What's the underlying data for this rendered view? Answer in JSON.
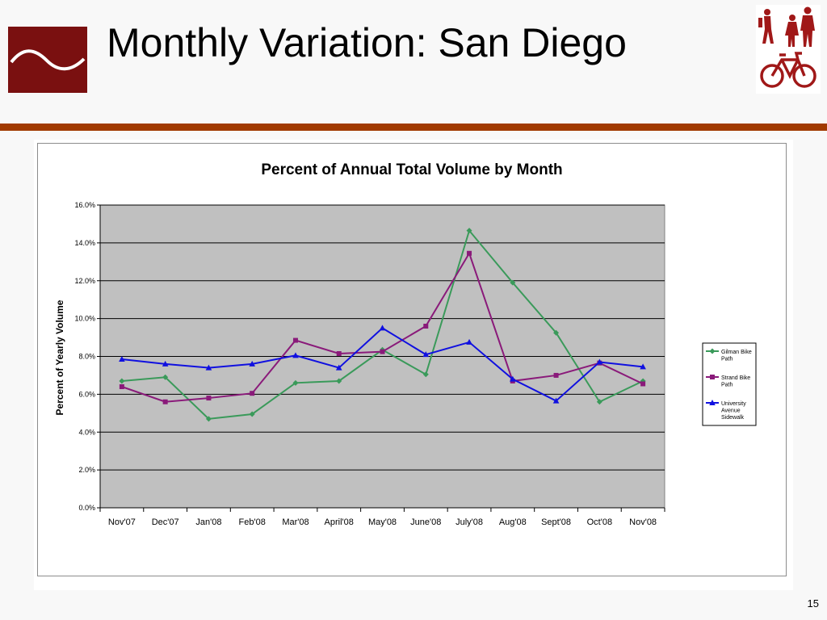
{
  "slide": {
    "title": "Monthly Variation: San Diego",
    "page_number": "15"
  },
  "colors": {
    "brand": "#7a1010",
    "header_bar": "#a13a00",
    "plot_area": "#c0c0c0",
    "gilman": "#3a9a5a",
    "strand": "#8a1a7a",
    "university": "#1010e0"
  },
  "icons": [
    "logo-wave-icon",
    "pedestrian-icon",
    "bicycle-icon"
  ],
  "chart_data": {
    "type": "line",
    "title": "Percent of Annual Total Volume by Month",
    "xlabel": "",
    "ylabel": "Percent of Yearly Volume",
    "ylim": [
      0,
      16
    ],
    "y_ticks": [
      "0.0%",
      "2.0%",
      "4.0%",
      "6.0%",
      "8.0%",
      "10.0%",
      "12.0%",
      "14.0%",
      "16.0%"
    ],
    "grid": true,
    "legend_position": "right",
    "categories": [
      "Nov'07",
      "Dec'07",
      "Jan'08",
      "Feb'08",
      "Mar'08",
      "April'08",
      "May'08",
      "June'08",
      "July'08",
      "Aug'08",
      "Sept'08",
      "Oct'08",
      "Nov'08"
    ],
    "series": [
      {
        "name": "Gilman Bike Path",
        "legend_lines": [
          "Gilman Bike",
          "Path"
        ],
        "color": "#3a9a5a",
        "marker": "diamond",
        "values": [
          6.7,
          6.9,
          4.7,
          4.95,
          6.6,
          6.7,
          8.35,
          7.05,
          14.65,
          11.9,
          9.25,
          5.6,
          6.7
        ]
      },
      {
        "name": "Strand Bike Path",
        "legend_lines": [
          "Strand Bike",
          "Path"
        ],
        "color": "#8a1a7a",
        "marker": "square",
        "values": [
          6.4,
          5.6,
          5.8,
          6.05,
          8.85,
          8.15,
          8.25,
          9.6,
          13.45,
          6.7,
          7.0,
          7.65,
          6.55
        ]
      },
      {
        "name": "University Avenue Sidewalk",
        "legend_lines": [
          "University",
          "Avenue",
          "Sidewalk"
        ],
        "color": "#1010e0",
        "marker": "triangle",
        "values": [
          7.85,
          7.6,
          7.4,
          7.6,
          8.05,
          7.4,
          9.5,
          8.1,
          8.75,
          6.8,
          5.65,
          7.7,
          7.45
        ]
      }
    ]
  }
}
